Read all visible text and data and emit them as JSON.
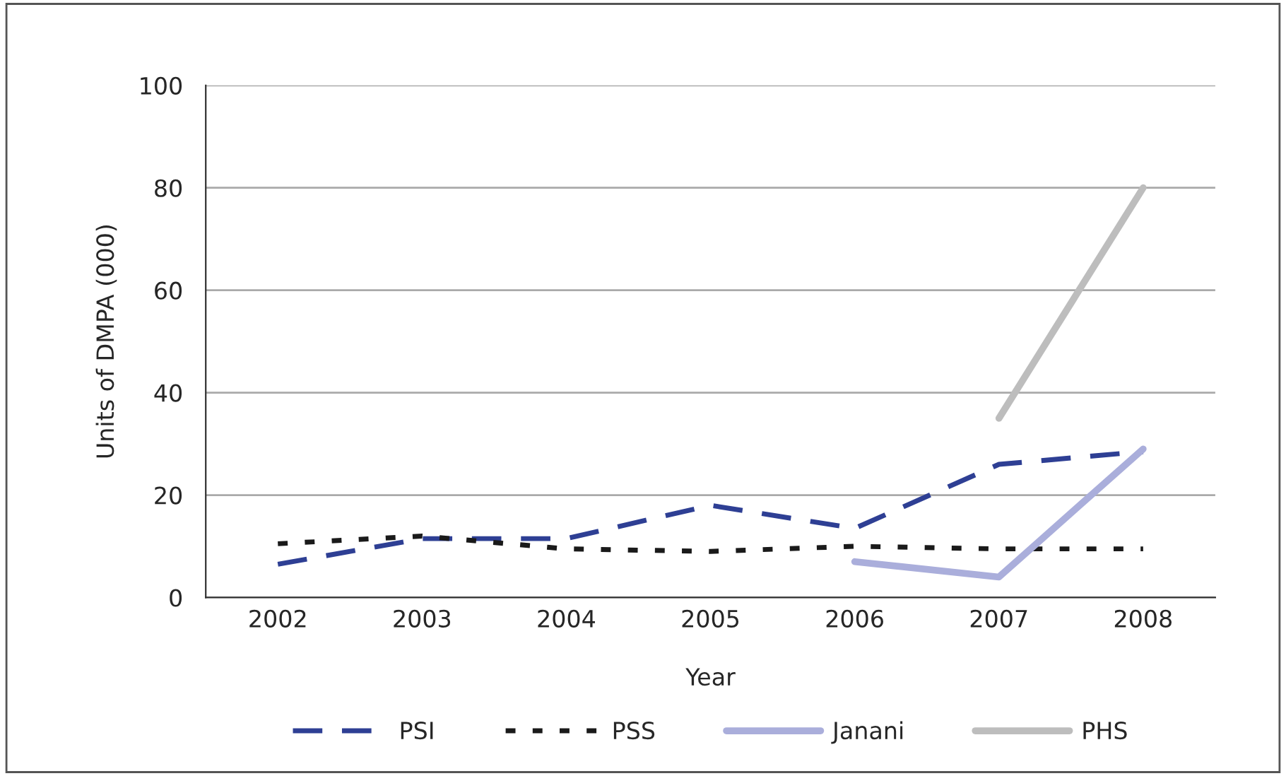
{
  "chart_data": {
    "type": "line",
    "xlabel": "Year",
    "ylabel": "Units of DMPA (000)",
    "categories": [
      "2002",
      "2003",
      "2004",
      "2005",
      "2006",
      "2007",
      "2008"
    ],
    "series": [
      {
        "name": "PSI",
        "color": "#2e3f94",
        "line_style": "dashed",
        "values": [
          6.5,
          11.5,
          11.5,
          18,
          13.5,
          26,
          28.5
        ]
      },
      {
        "name": "PSS",
        "color": "#1a1a1a",
        "line_style": "dotted",
        "values": [
          10.5,
          12,
          9.5,
          9,
          10,
          9.5,
          9.5
        ]
      },
      {
        "name": "Janani",
        "color": "#aaaedb",
        "line_style": "solid",
        "values": [
          null,
          null,
          null,
          null,
          7,
          4,
          29
        ]
      },
      {
        "name": "PHS",
        "color": "#bdbdbd",
        "line_style": "solid",
        "values": [
          null,
          null,
          null,
          null,
          null,
          35,
          80
        ]
      }
    ],
    "ylim": [
      0,
      100
    ],
    "yticks": [
      0,
      20,
      40,
      60,
      80,
      100
    ],
    "grid": "y",
    "legend": "bottom",
    "marker": "none"
  }
}
